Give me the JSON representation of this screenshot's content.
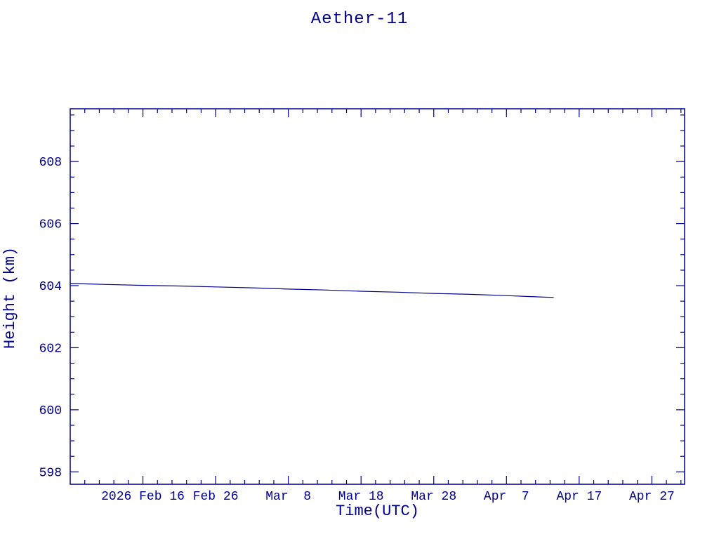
{
  "page": {
    "background": "#ffffff",
    "accent": "#00008b"
  },
  "chart_data": {
    "type": "line",
    "title": "Aether-11",
    "xlabel": "Time(UTC)",
    "ylabel": "Height (km)",
    "grid": false,
    "legend": "none",
    "xlim": [
      0,
      84.5
    ],
    "ylim": [
      597.6,
      609.7
    ],
    "x_axis_note": "day offsets; day 0 = left edge (approx 2026 Feb 6), major ticks every 10 days",
    "x_ticks": [
      {
        "day": 10,
        "label": "2026 Feb 16"
      },
      {
        "day": 20,
        "label": "Feb 26"
      },
      {
        "day": 30,
        "label": "Mar  8"
      },
      {
        "day": 40,
        "label": "Mar 18"
      },
      {
        "day": 50,
        "label": "Mar 28"
      },
      {
        "day": 60,
        "label": "Apr  7"
      },
      {
        "day": 70,
        "label": "Apr 17"
      },
      {
        "day": 80,
        "label": "Apr 27"
      }
    ],
    "x_minor_step": 2,
    "y_ticks": [
      598,
      600,
      602,
      604,
      606,
      608
    ],
    "y_minor_step": 0.5,
    "series": [
      {
        "name": "height",
        "color": "#00008b",
        "points": [
          [
            0,
            604.07
          ],
          [
            5,
            604.04
          ],
          [
            10,
            604.01
          ],
          [
            15,
            603.99
          ],
          [
            20,
            603.96
          ],
          [
            25,
            603.93
          ],
          [
            30,
            603.89
          ],
          [
            35,
            603.86
          ],
          [
            40,
            603.82
          ],
          [
            45,
            603.79
          ],
          [
            50,
            603.75
          ],
          [
            55,
            603.72
          ],
          [
            60,
            603.68
          ],
          [
            63,
            603.65
          ],
          [
            66.5,
            603.62
          ]
        ]
      }
    ]
  }
}
